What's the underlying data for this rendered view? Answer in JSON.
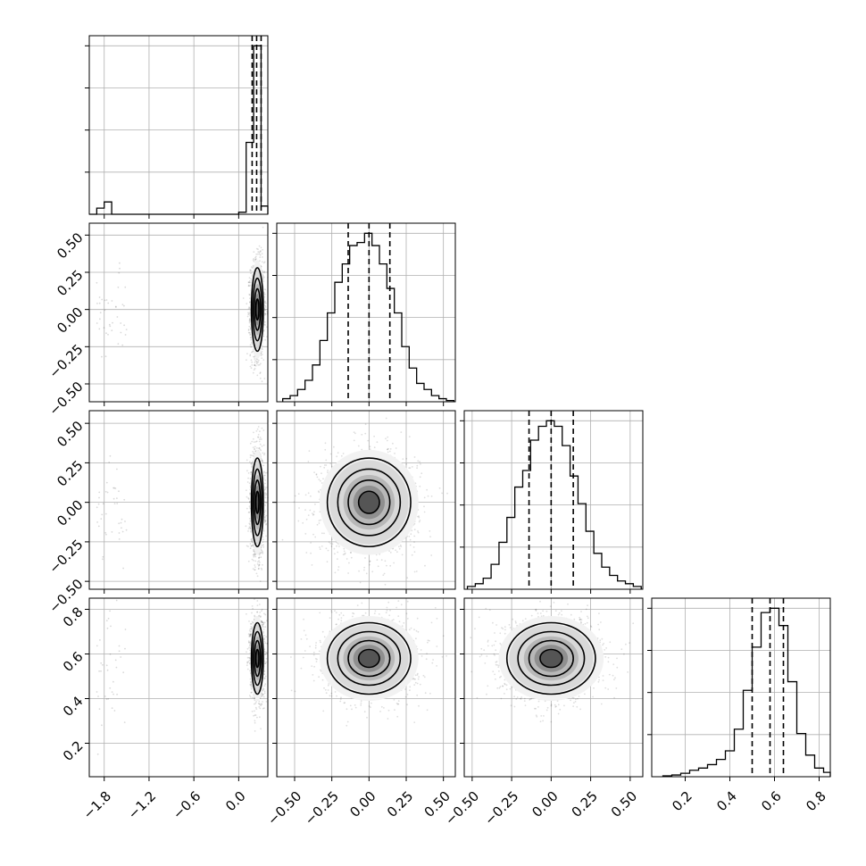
{
  "chart_data": {
    "type": "corner",
    "grid": true,
    "n_parameters": 4,
    "axis_labels": [
      "",
      "",
      "",
      ""
    ],
    "tick_labels": {
      "p0": [
        "−1.8",
        "−1.2",
        "−0.6",
        "0.0"
      ],
      "p1": [
        "−0.50",
        "−0.25",
        "0.00",
        "0.25",
        "0.50"
      ],
      "p2": [
        "−0.50",
        "−0.25",
        "0.00",
        "0.25",
        "0.50"
      ],
      "p3": [
        "0.2",
        "0.4",
        "0.6",
        "0.8"
      ]
    },
    "parameters": [
      {
        "range": [
          -2.0,
          0.39
        ],
        "ticks": [
          -1.8,
          -1.2,
          -0.6,
          0.0
        ],
        "quantiles": [
          0.18,
          0.24,
          0.3
        ],
        "histogram": {
          "edges": [
            -2.0,
            -1.9,
            -1.8,
            -1.7,
            -1.6,
            -1.5,
            -1.4,
            -1.3,
            -1.2,
            -1.1,
            -1.0,
            -0.9,
            -0.8,
            -0.7,
            -0.6,
            -0.5,
            -0.4,
            -0.3,
            -0.2,
            -0.1,
            0.0,
            0.1,
            0.2,
            0.3,
            0.39
          ],
          "counts": [
            0,
            0.3,
            0.6,
            0,
            0,
            0,
            0,
            0,
            0,
            0,
            0,
            0,
            0,
            0,
            0,
            0,
            0,
            0,
            0,
            0,
            0.1,
            3.5,
            8.2,
            0.4
          ]
        }
      },
      {
        "range": [
          -0.62,
          0.58
        ],
        "ticks": [
          -0.5,
          -0.25,
          0.0,
          0.25,
          0.5
        ],
        "quantiles": [
          -0.14,
          0.0,
          0.14
        ],
        "histogram": {
          "edges": [
            -0.58,
            -0.53,
            -0.48,
            -0.43,
            -0.38,
            -0.33,
            -0.28,
            -0.23,
            -0.18,
            -0.13,
            -0.08,
            -0.03,
            0.02,
            0.07,
            0.12,
            0.17,
            0.22,
            0.27,
            0.32,
            0.37,
            0.42,
            0.47,
            0.52,
            0.57
          ],
          "counts": [
            0.05,
            0.1,
            0.2,
            0.35,
            0.6,
            1.0,
            1.45,
            1.95,
            2.25,
            2.55,
            2.6,
            2.75,
            2.55,
            2.25,
            1.85,
            1.45,
            0.9,
            0.55,
            0.3,
            0.2,
            0.1,
            0.05,
            0.02
          ]
        }
      },
      {
        "range": [
          -0.55,
          0.58
        ],
        "ticks": [
          -0.5,
          -0.25,
          0.0,
          0.25,
          0.5
        ],
        "quantiles": [
          -0.14,
          0.0,
          0.14
        ],
        "histogram": {
          "edges": [
            -0.53,
            -0.48,
            -0.43,
            -0.38,
            -0.33,
            -0.28,
            -0.23,
            -0.18,
            -0.13,
            -0.08,
            -0.03,
            0.02,
            0.07,
            0.12,
            0.17,
            0.22,
            0.27,
            0.32,
            0.37,
            0.42,
            0.47,
            0.52,
            0.57
          ],
          "counts": [
            0.05,
            0.1,
            0.2,
            0.45,
            0.85,
            1.3,
            1.85,
            2.15,
            2.7,
            2.95,
            3.05,
            2.95,
            2.6,
            2.05,
            1.55,
            1.05,
            0.65,
            0.4,
            0.25,
            0.15,
            0.1,
            0.05
          ]
        }
      },
      {
        "range": [
          0.05,
          0.85
        ],
        "ticks": [
          0.2,
          0.4,
          0.6,
          0.8
        ],
        "quantiles": [
          0.5,
          0.58,
          0.64
        ],
        "histogram": {
          "edges": [
            0.1,
            0.14,
            0.18,
            0.22,
            0.26,
            0.3,
            0.34,
            0.38,
            0.42,
            0.46,
            0.5,
            0.54,
            0.58,
            0.62,
            0.66,
            0.7,
            0.74,
            0.78,
            0.82,
            0.85
          ],
          "counts": [
            0.02,
            0.04,
            0.08,
            0.15,
            0.2,
            0.28,
            0.4,
            0.6,
            1.1,
            2.0,
            3.0,
            3.8,
            3.9,
            3.5,
            2.2,
            1.0,
            0.5,
            0.2,
            0.1
          ]
        }
      }
    ],
    "joint_distributions": [
      {
        "x_param": 0,
        "y_param": 1,
        "center": [
          0.25,
          0.0
        ],
        "spread": [
          0.04,
          0.14
        ],
        "outliers": {
          "x_range": [
            -1.9,
            -1.5
          ],
          "y_spread": 0.15
        }
      },
      {
        "x_param": 0,
        "y_param": 2,
        "center": [
          0.25,
          0.0
        ],
        "spread": [
          0.04,
          0.14
        ],
        "outliers": {
          "x_range": [
            -1.9,
            -1.5
          ],
          "y_spread": 0.15
        }
      },
      {
        "x_param": 1,
        "y_param": 2,
        "center": [
          0.0,
          0.0
        ],
        "spread": [
          0.14,
          0.14
        ]
      },
      {
        "x_param": 0,
        "y_param": 3,
        "center": [
          0.25,
          0.58
        ],
        "spread": [
          0.04,
          0.08
        ],
        "outliers": {
          "x_range": [
            -1.9,
            -1.5
          ],
          "y_spread": 0.15
        }
      },
      {
        "x_param": 1,
        "y_param": 3,
        "center": [
          0.0,
          0.58
        ],
        "spread": [
          0.14,
          0.08
        ]
      },
      {
        "x_param": 2,
        "y_param": 3,
        "center": [
          0.0,
          0.58
        ],
        "spread": [
          0.14,
          0.08
        ]
      }
    ],
    "contour_levels_sigma": [
      0.5,
      1.0,
      1.5,
      2.0
    ],
    "density_levels": [
      0.5,
      0.8,
      1.3,
      2.0,
      2.5
    ]
  }
}
